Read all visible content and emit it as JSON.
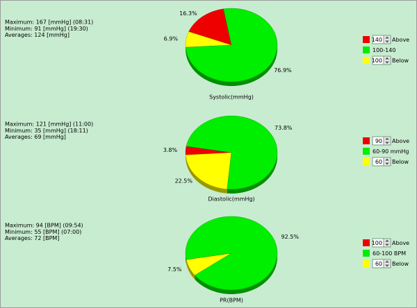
{
  "chart_data": [
    {
      "type": "pie",
      "title": "Systolic(mmHg)",
      "stats": [
        "Maximum: 167 [mmHg] (08:31)",
        "Minimum: 91 [mmHg] (19:30)",
        "Averages: 124 [mmHg]"
      ],
      "slices": [
        {
          "color": "#ee0000",
          "value": 16.3,
          "value_label": "16.3%"
        },
        {
          "color": "#ffff00",
          "value": 6.9,
          "value_label": "6.9%"
        },
        {
          "color": "#00ee00",
          "value": 76.9,
          "value_label": "76.9%"
        }
      ],
      "legend": [
        {
          "color": "#ee0000",
          "box": "140",
          "text": "Above"
        },
        {
          "color": "#00ee00",
          "text": "100-140"
        },
        {
          "color": "#ffff00",
          "box": "100",
          "text": "Below"
        }
      ]
    },
    {
      "type": "pie",
      "title": "Diastolic(mmHg)",
      "stats": [
        "Maximum: 121 [mmHg] (11:00)",
        "Minimum: 35 [mmHg] (18:11)",
        "Averages: 69 [mmHg]"
      ],
      "slices": [
        {
          "color": "#ee0000",
          "value": 3.8,
          "value_label": "3.8%"
        },
        {
          "color": "#ffff00",
          "value": 22.5,
          "value_label": "22.5%"
        },
        {
          "color": "#00ee00",
          "value": 73.8,
          "value_label": "73.8%"
        }
      ],
      "legend": [
        {
          "color": "#ee0000",
          "box": "90",
          "text": "Above"
        },
        {
          "color": "#00ee00",
          "text": "60-90 mmHg"
        },
        {
          "color": "#ffff00",
          "box": "60",
          "text": "Below"
        }
      ]
    },
    {
      "type": "pie",
      "title": "PR(BPM)",
      "stats": [
        "Maximum: 94 [BPM] (09:54)",
        "Minimum: 55 [BPM] (07:00)",
        "Averages: 72 [BPM]"
      ],
      "slices": [
        {
          "color": "#ffff00",
          "value": 7.5,
          "value_label": "7.5%"
        },
        {
          "color": "#00ee00",
          "value": 92.5,
          "value_label": "92.5%"
        }
      ],
      "legend": [
        {
          "color": "#ee0000",
          "box": "100",
          "text": "Above"
        },
        {
          "color": "#00ee00",
          "text": "60-100 BPM"
        },
        {
          "color": "#ffff00",
          "box": "60",
          "text": "Below"
        }
      ]
    }
  ]
}
